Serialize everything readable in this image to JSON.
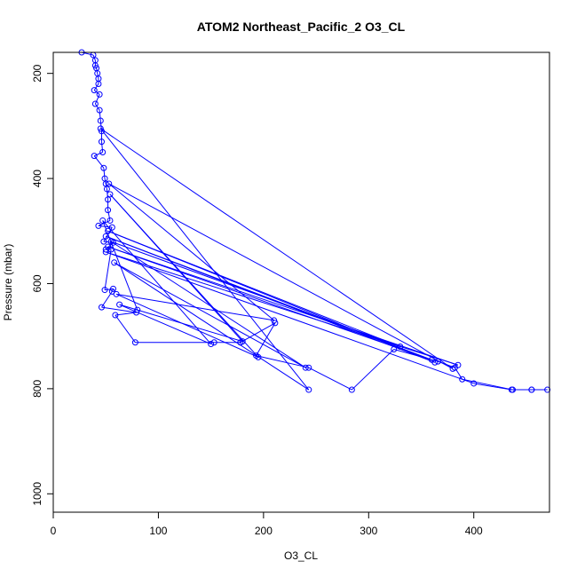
{
  "chart_data": {
    "type": "line",
    "title": "ATOM2 Northeast_Pacific_2 O3_CL",
    "xlabel": "O3_CL",
    "ylabel": "Pressure (mbar)",
    "xlim": [
      0,
      472
    ],
    "ylim": [
      1035,
      160
    ],
    "y_reversed": true,
    "x_ticks": [
      0,
      100,
      200,
      300,
      400
    ],
    "y_ticks": [
      200,
      400,
      600,
      800,
      1000
    ],
    "grid": false,
    "legend": "none",
    "colors": {
      "series": "#0000ff",
      "axes": "#000000"
    },
    "series": [
      {
        "points": [
          [
            27,
            160
          ],
          [
            38,
            165
          ],
          [
            40,
            175
          ],
          [
            40,
            185
          ],
          [
            41,
            190
          ],
          [
            42,
            200
          ],
          [
            43,
            210
          ],
          [
            43,
            220
          ],
          [
            39,
            232
          ],
          [
            44,
            240
          ],
          [
            40,
            258
          ],
          [
            44,
            270
          ],
          [
            45,
            290
          ],
          [
            46,
            310
          ],
          [
            46,
            330
          ],
          [
            47,
            350
          ],
          [
            39,
            357
          ],
          [
            48,
            380
          ],
          [
            49,
            400
          ],
          [
            50,
            410
          ],
          [
            51,
            420
          ],
          [
            52,
            440
          ],
          [
            52,
            460
          ],
          [
            54,
            480
          ],
          [
            43,
            490
          ],
          [
            56,
            493
          ],
          [
            48,
            520
          ],
          [
            57,
            522
          ],
          [
            50,
            535
          ],
          [
            55,
            535
          ],
          [
            49,
            612
          ],
          [
            57,
            610
          ],
          [
            56,
            615
          ],
          [
            46,
            645
          ],
          [
            79,
            655
          ],
          [
            59,
            660
          ],
          [
            78,
            712
          ],
          [
            153,
            712
          ],
          [
            178,
            712
          ],
          [
            211,
            675
          ],
          [
            193,
            737
          ],
          [
            243,
            760
          ],
          [
            284,
            802
          ],
          [
            324,
            725
          ],
          [
            366,
            748
          ],
          [
            382,
            760
          ],
          [
            389,
            782
          ],
          [
            437,
            802
          ],
          [
            455,
            802
          ],
          [
            470,
            802
          ],
          [
            455,
            802
          ],
          [
            436,
            802
          ],
          [
            400,
            790
          ],
          [
            50,
            540
          ],
          [
            385,
            755
          ],
          [
            52,
            530
          ],
          [
            360,
            745
          ],
          [
            50,
            510
          ],
          [
            363,
            750
          ],
          [
            52,
            500
          ],
          [
            330,
            720
          ],
          [
            55,
            520
          ],
          [
            240,
            760
          ],
          [
            58,
            560
          ],
          [
            243,
            802
          ],
          [
            45,
            305
          ],
          [
            380,
            762
          ],
          [
            53,
            410
          ],
          [
            210,
            670
          ],
          [
            60,
            620
          ],
          [
            195,
            740
          ],
          [
            54,
            430
          ],
          [
            180,
            710
          ],
          [
            63,
            640
          ],
          [
            150,
            715
          ],
          [
            47,
            480
          ],
          [
            80,
            650
          ]
        ]
      }
    ]
  }
}
